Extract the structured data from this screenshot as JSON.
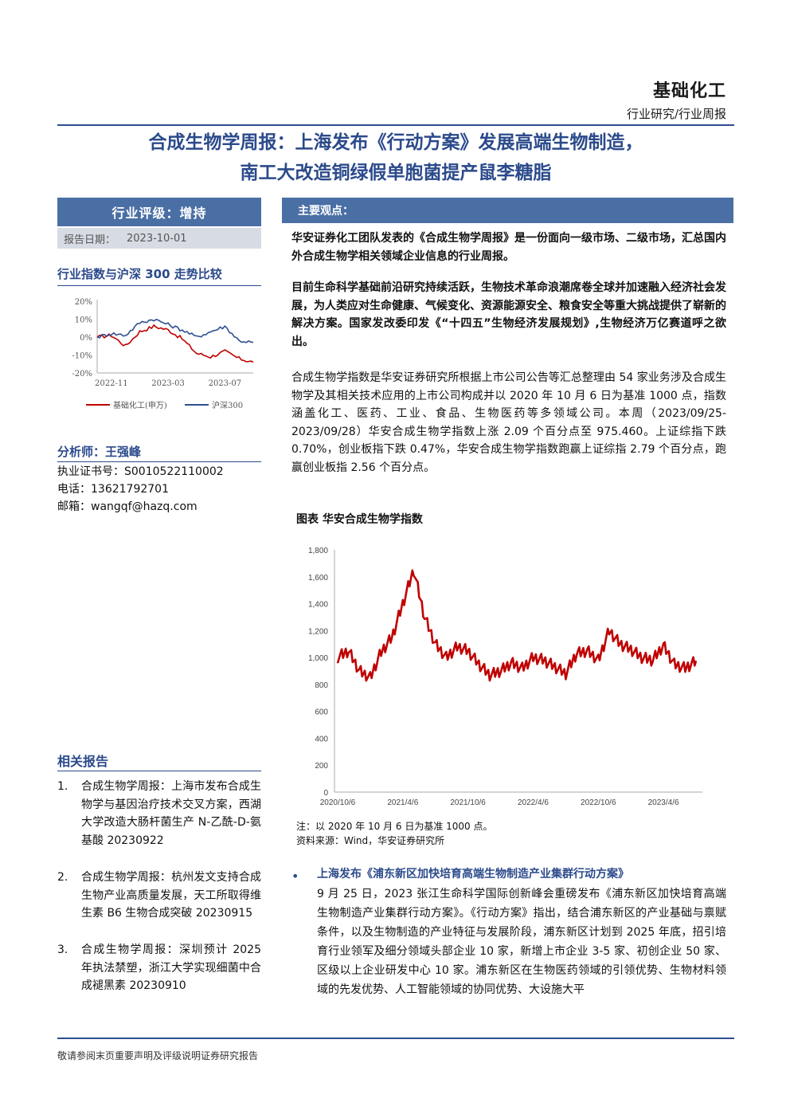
{
  "header": {
    "sector": "基础化工",
    "category": "行业研究/行业周报"
  },
  "title": {
    "line1": "合成生物学周报：上海发布《行动方案》发展高端生物制造，",
    "line2": "南工大改造铜绿假单胞菌提产鼠李糖脂"
  },
  "sidebar": {
    "rating": "行业评级：增持",
    "date_label": "报告日期：",
    "date_value": "2023-10-01",
    "comparison_heading": "行业指数与沪深 300 走势比较",
    "analyst_heading": "分析师：王强峰",
    "cert": "执业证书号：S0010522110002",
    "phone": "电话：13621792701",
    "email": "邮箱：wangqf@hazq.com",
    "related_heading": "相关报告",
    "related": [
      {
        "num": "1.",
        "text": "合成生物学周报：上海市发布合成生物学与基因治疗技术交叉方案，西湖大学改造大肠杆菌生产 N-乙酰-D-氨基酸 20230922"
      },
      {
        "num": "2.",
        "text": "合成生物学周报：杭州发文支持合成生物产业高质量发展，天工所取得维生素 B6 生物合成突破 20230915"
      },
      {
        "num": "3.",
        "text": "合成生物学周报：深圳预计 2025 年执法禁塑，浙江大学实现细菌中合成褪黑素 20230910"
      }
    ]
  },
  "main": {
    "heading": "主要观点：",
    "p1": "华安证券化工团队发表的《合成生物学周报》是一份面向一级市场、二级市场，汇总国内外合成生物学相关领域企业信息的行业周报。",
    "p2": "目前生命科学基础前沿研究持续活跃，生物技术革命浪潮席卷全球并加速融入经济社会发展，为人类应对生命健康、气候变化、资源能源安全、粮食安全等重大挑战提供了崭新的解决方案。国家发改委印发《“十四五”生物经济发展规划》,生物经济万亿赛道呼之欲出。",
    "p3": "合成生物学指数是华安证券研究所根据上市公司公告等汇总整理由 54 家业务涉及合成生物学及其相关技术应用的上市公司构成并以 2020 年 10 月 6 日为基准 1000 点，指数涵盖化工、医药、工业、食品、生物医药等多领域公司。本周（2023/09/25-2023/09/28）华安合成生物学指数上涨 2.09 个百分点至 975.460。上证综指下跌 0.70%，创业板指下跌 0.47%，华安合成生物学指数跑赢上证综指 2.79 个百分点，跑赢创业板指 2.56 个百分点。",
    "figure_title": "图表 华安合成生物学指数",
    "note": "注：以 2020 年 10 月 6 日为基准 1000 点。",
    "source": "资料来源：Wind，华安证券研究所",
    "bullet_head": "上海发布《浦东新区加快培育高端生物制造产业集群行动方案》",
    "bullet_body": "9 月 25 日，2023 张江生命科学国际创新峰会重磅发布《浦东新区加快培育高端生物制造产业集群行动方案》。《行动方案》指出，结合浦东新区的产业基础与禀赋条件，以及生物制造的产业特征与发展阶段，浦东新区计划到 2025 年底，招引培育行业领军及细分领域头部企业 10 家，新增上市企业 3-5 家、初创企业 50 家、区级以上企业研发中心 10 家。浦东新区在生物医药领域的引领优势、生物材料领域的先发优势、人工智能领域的协同优势、大设施大平"
  },
  "footer": "敬请参阅末页重要声明及评级说明证券研究报告",
  "chart_data": [
    {
      "type": "line",
      "x": [
        "2022-10",
        "2022-11",
        "2022-12",
        "2023-01",
        "2023-02",
        "2023-03",
        "2023-04",
        "2023-05",
        "2023-06",
        "2023-07",
        "2023-08",
        "2023-09"
      ],
      "x_ticks": [
        "2022-11",
        "2023-03",
        "2023-07"
      ],
      "y_ticks": [
        "20%",
        "10%",
        "0%",
        "-10%",
        "-20%"
      ],
      "ylim": [
        -20,
        20
      ],
      "legend_position": "bottom",
      "series": [
        {
          "name": "基础化工(申万)",
          "color": "#c00000",
          "values": [
            0,
            1,
            -5,
            3,
            6,
            4,
            -1,
            -9,
            -11,
            -8,
            -12,
            -14
          ]
        },
        {
          "name": "沪深300",
          "color": "#2f4f8f",
          "values": [
            0,
            2,
            1,
            8,
            10,
            7,
            4,
            0,
            3,
            6,
            -2,
            -3
          ]
        }
      ]
    },
    {
      "type": "line",
      "x": [
        "2020/10/6",
        "2020/12",
        "2021/2",
        "2021/3",
        "2021/4",
        "2021/5",
        "2021/6",
        "2021/7",
        "2021/8",
        "2021/9",
        "2021/10",
        "2021/11",
        "2021/12",
        "2022/1",
        "2022/2",
        "2022/3",
        "2022/4",
        "2022/5",
        "2022/6",
        "2022/7",
        "2022/8",
        "2022/9",
        "2022/10",
        "2022/11",
        "2022/12",
        "2023/1",
        "2023/2",
        "2023/3",
        "2023/4",
        "2023/5",
        "2023/6",
        "2023/7",
        "2023/8",
        "2023/9"
      ],
      "x_ticks": [
        "2020/10/6",
        "2021/4/6",
        "2021/10/6",
        "2022/4/6",
        "2022/10/6",
        "2023/4/6"
      ],
      "ylim": [
        0,
        1800
      ],
      "y_ticks": [
        "0",
        "200",
        "400",
        "600",
        "800",
        "1,000",
        "1,200",
        "1,400",
        "1,600",
        "1,800"
      ],
      "series": [
        {
          "name": "华安合成生物学指数",
          "color": "#c00000",
          "values": [
            1000,
            1050,
            900,
            850,
            1040,
            1150,
            1400,
            1650,
            1300,
            1100,
            1000,
            1080,
            1050,
            950,
            870,
            900,
            960,
            920,
            1000,
            980,
            930,
            880,
            1030,
            1050,
            980,
            1200,
            1100,
            1060,
            1000,
            980,
            1090,
            950,
            920,
            975
          ]
        }
      ]
    }
  ]
}
